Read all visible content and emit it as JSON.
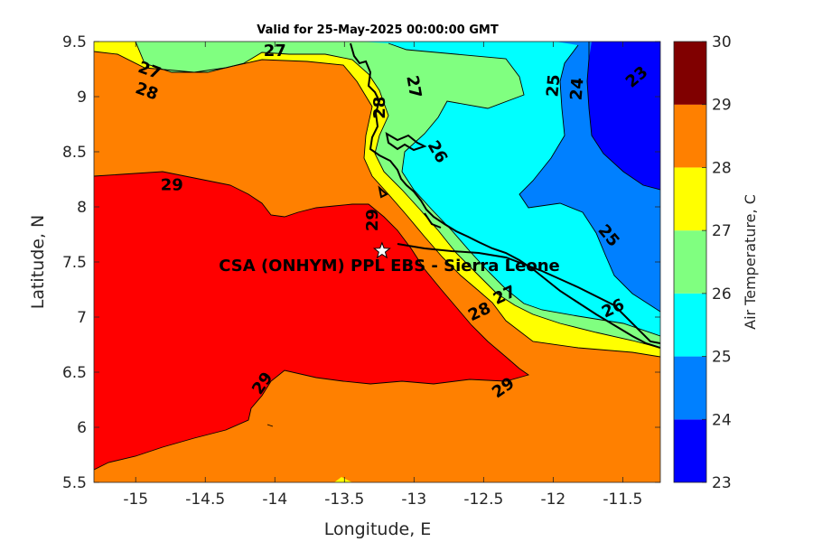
{
  "chart_data": {
    "type": "heatmap",
    "subtype": "filled-contour-map",
    "title": "Valid for 25-May-2025 00:00:00 GMT",
    "xlabel": "Longitude, E",
    "ylabel": "Latitude, N",
    "xlim": [
      -15.3,
      -11.23
    ],
    "ylim": [
      5.5,
      9.5
    ],
    "x_ticks": [
      "-15",
      "-14.5",
      "-14",
      "-13.5",
      "-13",
      "-12.5",
      "-12",
      "-11.5"
    ],
    "y_ticks": [
      "5.5",
      "6",
      "6.5",
      "7",
      "7.5",
      "8",
      "8.5",
      "9",
      "9.5"
    ],
    "colorbar": {
      "label": "Air Temperature, C",
      "range": [
        23,
        30
      ],
      "ticks": [
        "23",
        "24",
        "25",
        "26",
        "27",
        "28",
        "29",
        "30"
      ],
      "levels": [
        {
          "from": 23,
          "to": 24,
          "color": "#0000ff"
        },
        {
          "from": 24,
          "to": 25,
          "color": "#0080ff"
        },
        {
          "from": 25,
          "to": 26,
          "color": "#00ffff"
        },
        {
          "from": 26,
          "to": 27,
          "color": "#80ff80"
        },
        {
          "from": 27,
          "to": 28,
          "color": "#ffff00"
        },
        {
          "from": 28,
          "to": 29,
          "color": "#ff8000"
        },
        {
          "from": 29,
          "to": 30,
          "color": "#ff0000"
        }
      ],
      "top_color": "#800000"
    },
    "contour_labels": [
      {
        "text": "27",
        "lon": -14.0,
        "lat": 9.42,
        "angle": 0
      },
      {
        "text": "27",
        "lon": -14.9,
        "lat": 9.24,
        "angle": 20
      },
      {
        "text": "28",
        "lon": -14.92,
        "lat": 9.05,
        "angle": 20
      },
      {
        "text": "29",
        "lon": -14.74,
        "lat": 8.2,
        "angle": 0
      },
      {
        "text": "29",
        "lon": -13.3,
        "lat": 7.88,
        "angle": -90
      },
      {
        "text": "28",
        "lon": -13.25,
        "lat": 8.9,
        "angle": -90
      },
      {
        "text": "27",
        "lon": -13.0,
        "lat": 9.09,
        "angle": 80
      },
      {
        "text": "26",
        "lon": -12.83,
        "lat": 8.5,
        "angle": 60
      },
      {
        "text": "25",
        "lon": -12.0,
        "lat": 9.1,
        "angle": -85
      },
      {
        "text": "24",
        "lon": -11.83,
        "lat": 9.07,
        "angle": -85
      },
      {
        "text": "23",
        "lon": -11.4,
        "lat": 9.18,
        "angle": -40
      },
      {
        "text": "25",
        "lon": -11.6,
        "lat": 7.74,
        "angle": 50
      },
      {
        "text": "26",
        "lon": -11.57,
        "lat": 7.08,
        "angle": -25
      },
      {
        "text": "27",
        "lon": -12.35,
        "lat": 7.2,
        "angle": -25
      },
      {
        "text": "28",
        "lon": -12.53,
        "lat": 7.05,
        "angle": -25
      },
      {
        "text": "29",
        "lon": -12.36,
        "lat": 6.36,
        "angle": -35
      },
      {
        "text": "29",
        "lon": -14.09,
        "lat": 6.4,
        "angle": -55
      }
    ],
    "site": {
      "label": "CSA (ONHYM) PPL EBS - Sierra Leone",
      "lon": -13.23,
      "lat": 7.6,
      "marker": "white-star"
    }
  }
}
